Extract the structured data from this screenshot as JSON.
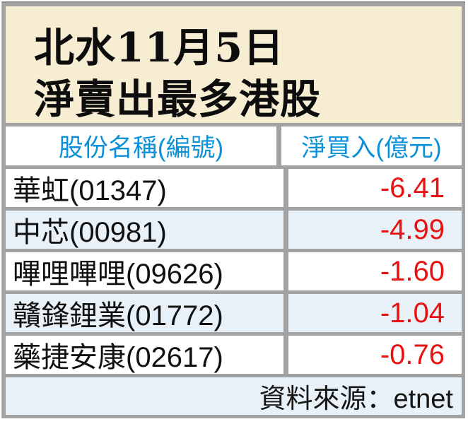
{
  "title": {
    "line1": "北水11月5日",
    "line2": "淨賣出最多港股"
  },
  "table": {
    "headers": [
      "股份名稱(編號)",
      "淨買入(億元)"
    ],
    "rows": [
      {
        "name": "華虹(01347)",
        "value": "-6.41"
      },
      {
        "name": "中芯(00981)",
        "value": "-4.99"
      },
      {
        "name": "嗶哩嗶哩(09626)",
        "value": "-1.60"
      },
      {
        "name": "贛鋒鋰業(01772)",
        "value": "-1.04"
      },
      {
        "name": "藥捷安康(02617)",
        "value": "-0.76"
      }
    ]
  },
  "footer": {
    "source_label": "資料來源：etnet"
  },
  "colors": {
    "title_background": "#f6edd2",
    "header_text_blue": "#0a8fd9",
    "negative_value_red": "#e81212",
    "alt_row_blue": "#e7f1f7",
    "frame_gray": "#a2a2a2"
  },
  "chart_data": {
    "type": "table",
    "title": "北水11月5日淨賣出最多港股",
    "columns": [
      "股份名稱(編號)",
      "淨買入(億元)"
    ],
    "rows": [
      [
        "華虹(01347)",
        -6.41
      ],
      [
        "中芯(00981)",
        -4.99
      ],
      [
        "嗶哩嗶哩(09626)",
        -1.6
      ],
      [
        "贛鋒鋰業(01772)",
        -1.04
      ],
      [
        "藥捷安康(02617)",
        -0.76
      ]
    ],
    "source": "資料來源：etnet"
  }
}
